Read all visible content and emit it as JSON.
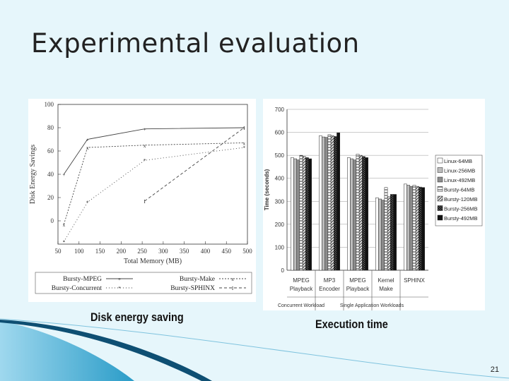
{
  "slide": {
    "title": "Experimental evaluation",
    "page_number": "21",
    "caption_left": "Disk energy saving",
    "caption_right": "Execution time",
    "accent_color": "#1e8fb8"
  },
  "chart_data": [
    {
      "type": "line",
      "title": "",
      "xlabel": "Total Memory (MB)",
      "ylabel": "Disk Energy Savings",
      "xlim": [
        50,
        500
      ],
      "ylim": [
        -20,
        100
      ],
      "xticks": [
        50,
        100,
        150,
        200,
        250,
        300,
        350,
        400,
        450,
        500
      ],
      "yticks": [
        0,
        20,
        40,
        60,
        80,
        100
      ],
      "grid": false,
      "legend": "bottom",
      "series": [
        {
          "name": "Bursty-MPEG",
          "dash": "",
          "marker": "+",
          "x": [
            64,
            120,
            256,
            492
          ],
          "y": [
            40,
            70,
            79,
            80
          ]
        },
        {
          "name": "Bursty-Make",
          "dash": "2,2",
          "marker": "x",
          "x": [
            64,
            120,
            256,
            492
          ],
          "y": [
            -3,
            63,
            65,
            67
          ]
        },
        {
          "name": "Bursty-Concurrent",
          "dash": "1,3",
          "marker": "*",
          "x": [
            64,
            120,
            256,
            492
          ],
          "y": [
            -18,
            16,
            52,
            63
          ]
        },
        {
          "name": "Bursty-SPHINX",
          "dash": "4,3",
          "marker": "I",
          "x": [
            256,
            492
          ],
          "y": [
            17,
            80
          ]
        }
      ]
    },
    {
      "type": "bar",
      "title": "",
      "ylabel": "Time (seconds)",
      "ylim": [
        0,
        700
      ],
      "yticks": [
        0,
        100,
        200,
        300,
        400,
        500,
        600,
        700
      ],
      "grid": true,
      "legend": "right",
      "categories": [
        "MPEG Playback",
        "MP3 Encoder",
        "MPEG Playback",
        "Kernel Make",
        "SPHINX"
      ],
      "group_labels": [
        "Concurrent Workload",
        "Single Application Workloads"
      ],
      "series": [
        {
          "name": "Linux-64MB",
          "values": [
            490,
            585,
            490,
            315,
            375
          ]
        },
        {
          "name": "Linux-256MB",
          "values": [
            485,
            580,
            485,
            310,
            370
          ]
        },
        {
          "name": "Linux-492MB",
          "values": [
            480,
            578,
            480,
            305,
            365
          ]
        },
        {
          "name": "Bursty-64MB",
          "values": [
            500,
            590,
            505,
            360,
            370
          ]
        },
        {
          "name": "Bursty-120MB",
          "values": [
            495,
            585,
            500,
            320,
            365
          ]
        },
        {
          "name": "Bursty-256MB",
          "values": [
            490,
            582,
            495,
            330,
            362
          ]
        },
        {
          "name": "Bursty-492MB",
          "values": [
            485,
            598,
            490,
            330,
            360
          ]
        }
      ]
    }
  ]
}
